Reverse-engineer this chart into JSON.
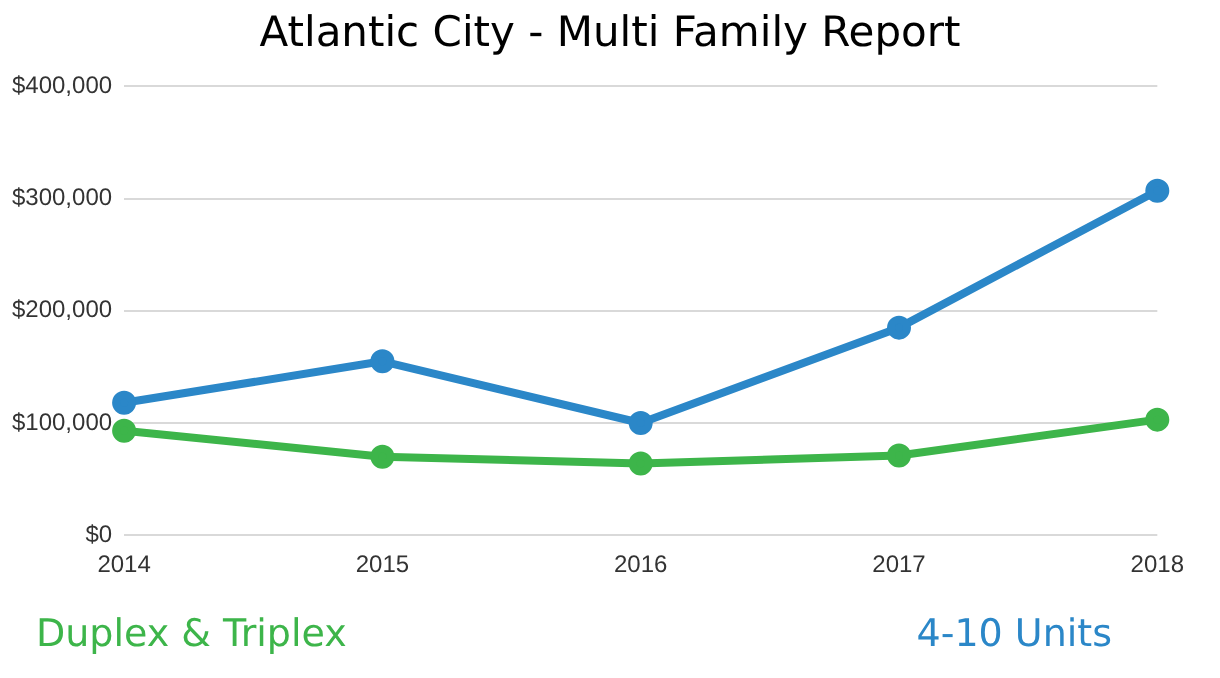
{
  "chart_data": {
    "type": "line",
    "title": "Atlantic City - Multi Family Report",
    "categories": [
      "2014",
      "2015",
      "2016",
      "2017",
      "2018"
    ],
    "series": [
      {
        "name": "Duplex & Triplex",
        "color": "#3db54a",
        "values": [
          93000,
          70000,
          64000,
          71000,
          103000
        ]
      },
      {
        "name": "4-10 Units",
        "color": "#2b87c8",
        "values": [
          118000,
          155000,
          100000,
          185000,
          307000
        ]
      }
    ],
    "ylim": [
      0,
      400000
    ],
    "yticks": [
      {
        "value": 0,
        "label": "$0"
      },
      {
        "value": 100000,
        "label": "$100,000"
      },
      {
        "value": 200000,
        "label": "$200,000"
      },
      {
        "value": 300000,
        "label": "$300,000"
      },
      {
        "value": 400000,
        "label": "$400,000"
      }
    ],
    "grid": "y",
    "legend": "bottom",
    "marker": "circle",
    "line_style": "solid"
  }
}
